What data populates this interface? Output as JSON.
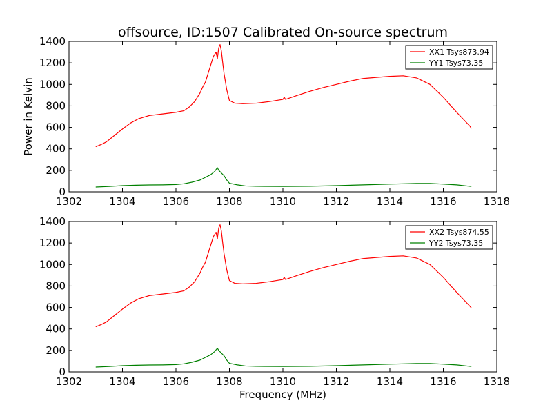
{
  "figure": {
    "title": "offsource, ID:1507 Calibrated On-source spectrum",
    "xlabel": "Frequency (MHz)",
    "ylabel": "Power in Kelvin"
  },
  "chart_data": [
    {
      "type": "line",
      "title": "offsource, ID:1507 Calibrated On-source spectrum",
      "xlabel": "",
      "ylabel": "Power in Kelvin",
      "xlim": [
        1302,
        1318
      ],
      "ylim": [
        0,
        1400
      ],
      "xticks": [
        1302,
        1304,
        1306,
        1308,
        1310,
        1312,
        1314,
        1316,
        1318
      ],
      "yticks": [
        0,
        200,
        400,
        600,
        800,
        1000,
        1200,
        1400
      ],
      "grid": false,
      "legend": "top-right",
      "series": [
        {
          "name": "XX1 Tsys873.94",
          "color": "#ff0000",
          "x": [
            1303.0,
            1303.2,
            1303.4,
            1303.6,
            1303.8,
            1304.0,
            1304.3,
            1304.6,
            1305.0,
            1305.5,
            1306.0,
            1306.3,
            1306.5,
            1306.7,
            1306.9,
            1307.0,
            1307.1,
            1307.2,
            1307.3,
            1307.4,
            1307.5,
            1307.55,
            1307.6,
            1307.65,
            1307.7,
            1307.75,
            1307.8,
            1307.9,
            1308.0,
            1308.2,
            1308.5,
            1309.0,
            1309.5,
            1310.0,
            1310.05,
            1310.1,
            1310.5,
            1311.0,
            1311.5,
            1312.0,
            1312.5,
            1313.0,
            1313.5,
            1314.0,
            1314.5,
            1315.0,
            1315.5,
            1316.0,
            1316.5,
            1317.0,
            1317.05
          ],
          "y": [
            420,
            440,
            465,
            505,
            545,
            585,
            640,
            680,
            710,
            725,
            740,
            755,
            790,
            840,
            920,
            975,
            1020,
            1100,
            1180,
            1260,
            1300,
            1240,
            1340,
            1370,
            1310,
            1200,
            1100,
            950,
            850,
            825,
            820,
            825,
            840,
            860,
            880,
            860,
            895,
            935,
            970,
            1000,
            1030,
            1055,
            1065,
            1075,
            1080,
            1060,
            1000,
            880,
            740,
            610,
            590
          ]
        },
        {
          "name": "YY1 Tsys73.35",
          "color": "#008000",
          "x": [
            1303.0,
            1303.5,
            1304.0,
            1304.5,
            1305.0,
            1305.5,
            1306.0,
            1306.3,
            1306.6,
            1306.9,
            1307.1,
            1307.3,
            1307.45,
            1307.55,
            1307.6,
            1307.7,
            1307.8,
            1307.9,
            1308.0,
            1308.3,
            1308.6,
            1309.0,
            1310.0,
            1311.0,
            1312.0,
            1313.0,
            1314.0,
            1315.0,
            1315.5,
            1316.0,
            1316.5,
            1317.05
          ],
          "y": [
            45,
            50,
            58,
            62,
            64,
            65,
            68,
            75,
            90,
            110,
            135,
            160,
            190,
            225,
            200,
            175,
            150,
            110,
            80,
            65,
            55,
            52,
            50,
            52,
            58,
            65,
            72,
            78,
            78,
            72,
            65,
            50
          ]
        }
      ]
    },
    {
      "type": "line",
      "title": "",
      "xlabel": "Frequency (MHz)",
      "ylabel": "",
      "xlim": [
        1302,
        1318
      ],
      "ylim": [
        0,
        1400
      ],
      "xticks": [
        1302,
        1304,
        1306,
        1308,
        1310,
        1312,
        1314,
        1316,
        1318
      ],
      "yticks": [
        0,
        200,
        400,
        600,
        800,
        1000,
        1200,
        1400
      ],
      "grid": false,
      "legend": "top-right",
      "series": [
        {
          "name": "XX2 Tsys874.55",
          "color": "#ff0000",
          "x": [
            1303.0,
            1303.2,
            1303.4,
            1303.6,
            1303.8,
            1304.0,
            1304.3,
            1304.6,
            1305.0,
            1305.5,
            1306.0,
            1306.3,
            1306.5,
            1306.7,
            1306.9,
            1307.0,
            1307.1,
            1307.2,
            1307.3,
            1307.4,
            1307.5,
            1307.55,
            1307.6,
            1307.65,
            1307.7,
            1307.75,
            1307.8,
            1307.9,
            1308.0,
            1308.2,
            1308.5,
            1309.0,
            1309.5,
            1310.0,
            1310.05,
            1310.1,
            1310.5,
            1311.0,
            1311.5,
            1312.0,
            1312.5,
            1313.0,
            1313.5,
            1314.0,
            1314.5,
            1315.0,
            1315.5,
            1316.0,
            1316.5,
            1317.0,
            1317.05
          ],
          "y": [
            420,
            440,
            465,
            505,
            545,
            585,
            640,
            680,
            710,
            725,
            740,
            755,
            790,
            840,
            920,
            975,
            1020,
            1100,
            1180,
            1260,
            1300,
            1240,
            1340,
            1370,
            1310,
            1200,
            1100,
            950,
            850,
            825,
            820,
            825,
            840,
            860,
            880,
            860,
            895,
            935,
            970,
            1000,
            1030,
            1055,
            1065,
            1075,
            1080,
            1060,
            1000,
            880,
            740,
            610,
            595
          ]
        },
        {
          "name": "YY2 Tsys73.35",
          "color": "#008000",
          "x": [
            1303.0,
            1303.5,
            1304.0,
            1304.5,
            1305.0,
            1305.5,
            1306.0,
            1306.3,
            1306.6,
            1306.9,
            1307.1,
            1307.3,
            1307.45,
            1307.55,
            1307.6,
            1307.7,
            1307.8,
            1307.9,
            1308.0,
            1308.3,
            1308.6,
            1309.0,
            1310.0,
            1311.0,
            1312.0,
            1313.0,
            1314.0,
            1315.0,
            1315.5,
            1316.0,
            1316.5,
            1317.05
          ],
          "y": [
            45,
            50,
            58,
            62,
            64,
            65,
            68,
            75,
            90,
            110,
            135,
            160,
            190,
            220,
            200,
            175,
            150,
            110,
            80,
            65,
            55,
            52,
            50,
            52,
            58,
            65,
            72,
            78,
            78,
            72,
            65,
            50
          ]
        }
      ]
    }
  ]
}
